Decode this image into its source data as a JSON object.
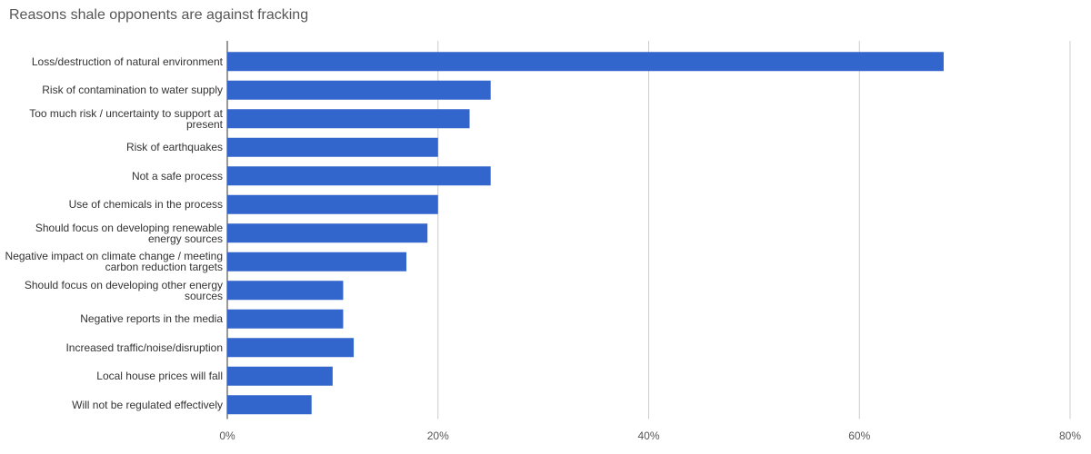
{
  "chart_data": {
    "type": "hbar",
    "title": "Reasons shale opponents are against fracking",
    "categories": [
      "Loss/destruction of natural environment",
      "Risk of contamination to water supply",
      "Too much risk / uncertainty to support at present",
      "Risk of earthquakes",
      "Not a safe process",
      "Use of chemicals in the process",
      "Should focus on developing renewable energy sources",
      "Negative impact on climate change / meeting carbon reduction targets",
      "Should focus on developing other energy sources",
      "Negative reports in the media",
      "Increased traffic/noise/disruption",
      "Local house prices will fall",
      "Will not be regulated effectively"
    ],
    "values": [
      68,
      25,
      23,
      20,
      25,
      20,
      19,
      17,
      11,
      11,
      12,
      10,
      8
    ],
    "color": "#3366cc",
    "xlim": [
      0,
      80
    ],
    "xticks": [
      {
        "value": 0,
        "label": "0%"
      },
      {
        "value": 20,
        "label": "20%"
      },
      {
        "value": 40,
        "label": "40%"
      },
      {
        "value": 60,
        "label": "60%"
      },
      {
        "value": 80,
        "label": "80%"
      }
    ],
    "grid": true
  }
}
